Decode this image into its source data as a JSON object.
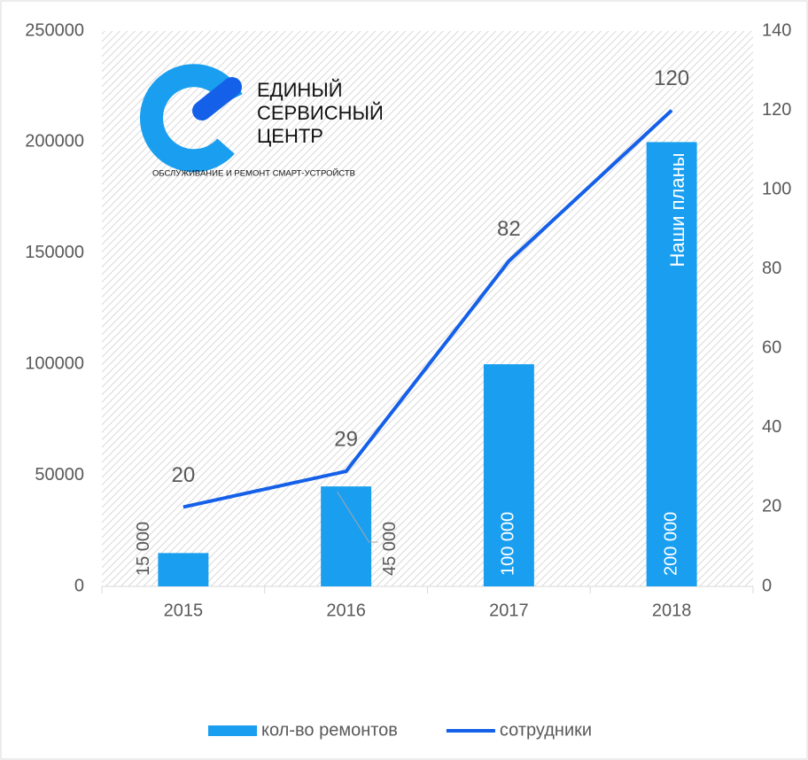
{
  "chart_data": {
    "type": "bar-line",
    "logo": {
      "line1": "ЕДИНЫЙ",
      "line2": "СЕРВИСНЫЙ",
      "line3": "ЦЕНТР",
      "tagline": "ОБСЛУЖИВАНИЕ И РЕМОНТ СМАРТ-УСТРОЙСТВ"
    },
    "annotation": "Наши планы",
    "categories": [
      "2015",
      "2016",
      "2017",
      "2018"
    ],
    "series": [
      {
        "name": "кол-во ремонтов",
        "type": "bar",
        "color": "#1a9ff0",
        "values": [
          15000,
          45000,
          100000,
          200000
        ],
        "value_labels": [
          "15 000",
          "45 000",
          "100 000",
          "200 000"
        ]
      },
      {
        "name": "сотрудники",
        "type": "line",
        "axis": "y2",
        "color": "#1560e8",
        "values": [
          20,
          29,
          82,
          120
        ]
      }
    ],
    "ylim": [
      0,
      250000
    ],
    "yticks": [
      0,
      50000,
      100000,
      150000,
      200000,
      250000
    ],
    "y2lim": [
      0,
      140
    ],
    "y2ticks": [
      0,
      20,
      40,
      60,
      80,
      100,
      120,
      140
    ],
    "legend": "bottom"
  }
}
